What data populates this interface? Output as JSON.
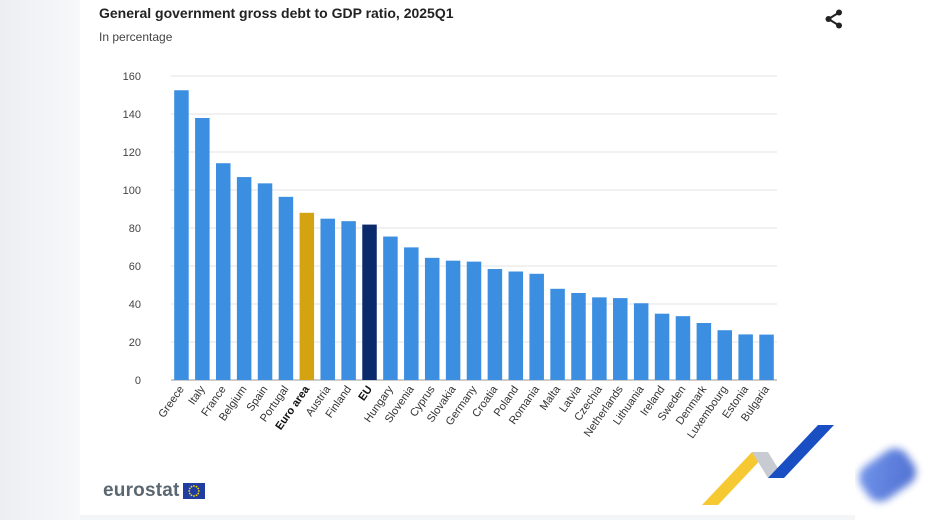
{
  "page": {
    "share_icon": "share-icon",
    "logo_text": "eurostat",
    "logo_icon": "eu-flag-icon"
  },
  "chart_data": {
    "type": "bar",
    "title": "General government gross debt to GDP ratio, 2025Q1",
    "subtitle": "In percentage",
    "xlabel": "",
    "ylabel": "",
    "ylim": [
      0,
      160
    ],
    "yticks": [
      0,
      20,
      40,
      60,
      80,
      100,
      120,
      140,
      160
    ],
    "grid": true,
    "categories": [
      "Greece",
      "Italy",
      "France",
      "Belgium",
      "Spain",
      "Portugal",
      "Euro area",
      "Austria",
      "Finland",
      "EU",
      "Hungary",
      "Slovenia",
      "Cyprus",
      "Slovakia",
      "Germany",
      "Croatia",
      "Poland",
      "Romania",
      "Malta",
      "Latvia",
      "Czechia",
      "Netherlands",
      "Lithuania",
      "Ireland",
      "Sweden",
      "Denmark",
      "Luxembourg",
      "Estonia",
      "Bulgaria"
    ],
    "values": [
      152.5,
      137.9,
      114.1,
      106.8,
      103.5,
      96.4,
      88.0,
      84.9,
      83.6,
      81.8,
      75.5,
      69.8,
      64.3,
      62.8,
      62.3,
      58.4,
      57.1,
      55.9,
      48.0,
      45.8,
      43.5,
      43.1,
      40.4,
      34.9,
      33.6,
      30.0,
      26.2,
      24.0,
      23.9
    ],
    "bold_categories": [
      "Euro area",
      "EU"
    ],
    "colors": {
      "default": "#3b8ee0",
      "Euro area": "#d4a312",
      "EU": "#0b2a6b",
      "grid": "#e3e3e3",
      "axis": "#999999"
    }
  }
}
